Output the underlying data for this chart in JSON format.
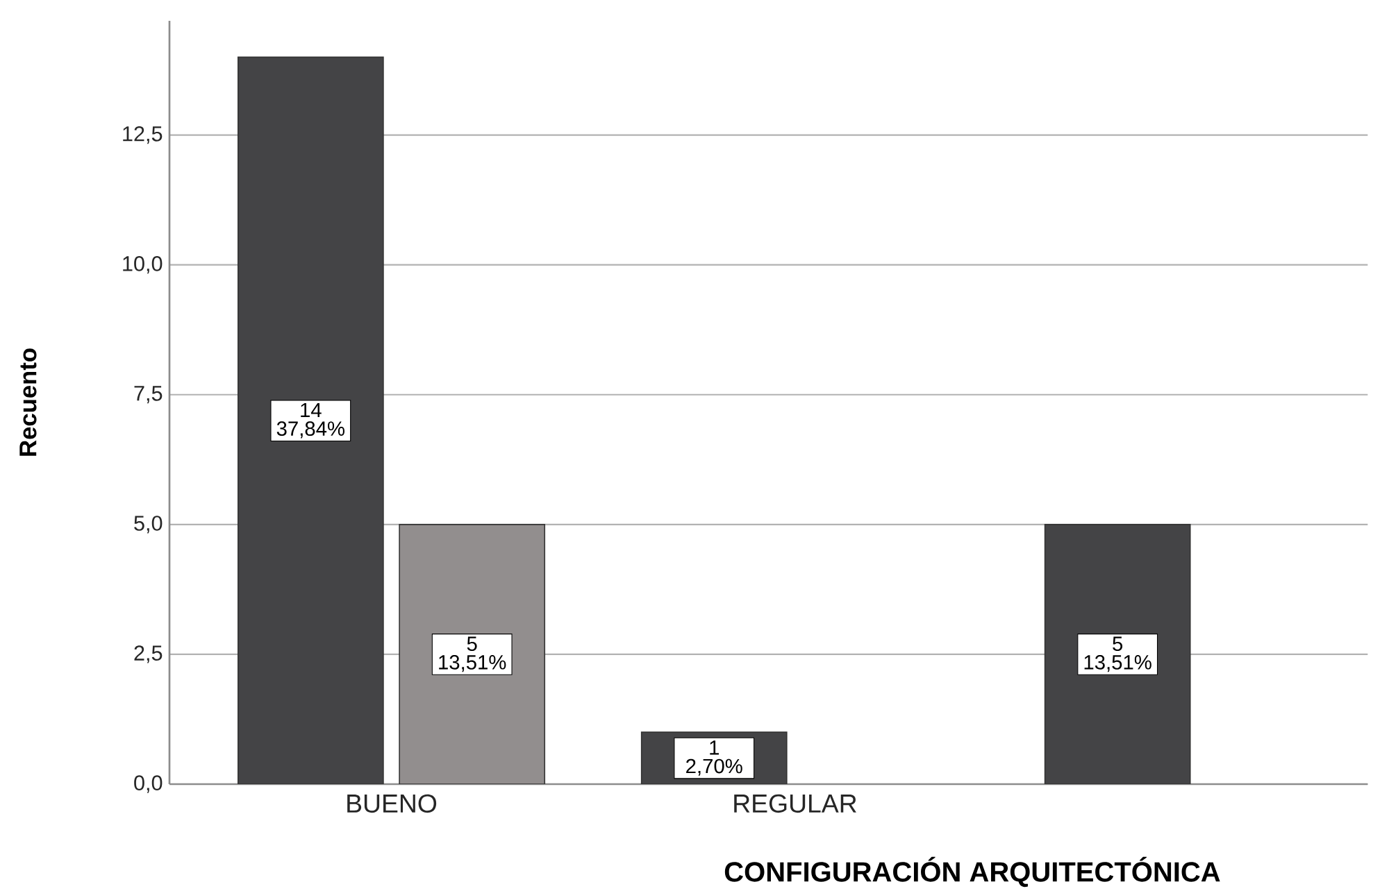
{
  "chart_data": {
    "type": "bar",
    "xlabel": "CONFIGURACIÓN ARQUITECTÓNICA",
    "ylabel": "Recuento",
    "categories": [
      "BUENO",
      "REGULAR",
      null
    ],
    "series": [
      {
        "color": "#444446",
        "values": [
          14,
          1,
          5
        ],
        "value_labels": [
          "14 37,84%",
          "1 2,70%",
          "5 13,51%"
        ]
      },
      {
        "color": "#928e8e",
        "values": [
          5,
          null,
          null
        ],
        "value_labels": [
          "5 13,51%",
          null,
          null
        ]
      }
    ],
    "ylim": [
      0,
      14.7
    ],
    "yticks": [
      {
        "value": 0,
        "label": "0,0"
      },
      {
        "value": 2.5,
        "label": "2,5"
      },
      {
        "value": 5,
        "label": "5,0"
      },
      {
        "value": 7.5,
        "label": "7,5"
      },
      {
        "value": 10,
        "label": "10,0"
      },
      {
        "value": 12.5,
        "label": "12,5"
      }
    ],
    "grid": "y"
  }
}
